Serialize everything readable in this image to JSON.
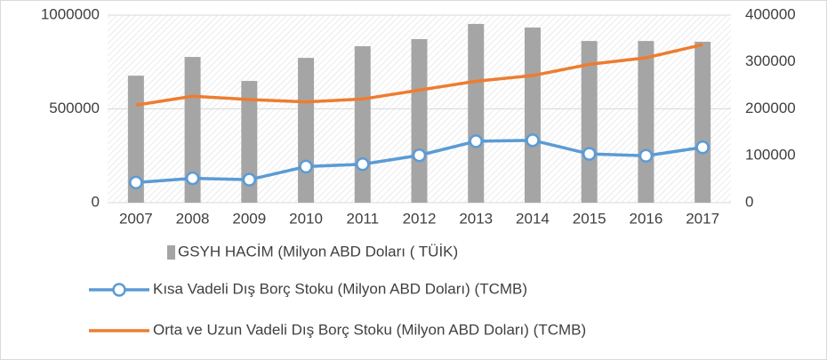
{
  "chart_data": {
    "type": "combo",
    "categories": [
      "2007",
      "2008",
      "2009",
      "2010",
      "2011",
      "2012",
      "2013",
      "2014",
      "2015",
      "2016",
      "2017"
    ],
    "series": [
      {
        "name": "GSYH HACİM (Milyon ABD Doları ( TÜİK)",
        "type": "bar",
        "color": "#a5a5a5",
        "values": [
          677000,
          777000,
          649000,
          772000,
          834000,
          872000,
          953000,
          934000,
          862000,
          862000,
          858000
        ]
      },
      {
        "name": "Kısa Vadeli Dış Borç Stoku  (Milyon ABD Doları) (TCMB)",
        "type": "line",
        "marker": "circle",
        "axis": "y2",
        "color": "#5b9bd5",
        "values": [
          43000,
          52000,
          49000,
          77000,
          82000,
          101000,
          131000,
          133000,
          104000,
          100000,
          118000
        ]
      },
      {
        "name": "Orta ve Uzun Vadeli Dış Borç Stoku (Milyon ABD Doları) (TCMB)",
        "type": "line",
        "axis": "y2",
        "color": "#ed7d31",
        "values": [
          208000,
          227000,
          220000,
          215000,
          221000,
          240000,
          259000,
          271000,
          295000,
          309000,
          337000
        ]
      }
    ],
    "ylim": [
      0,
      1000000
    ],
    "yticks": [
      0,
      500000,
      1000000
    ],
    "y2lim": [
      0,
      400000
    ],
    "y2ticks": [
      0,
      100000,
      200000,
      300000,
      400000
    ],
    "grid": true
  }
}
